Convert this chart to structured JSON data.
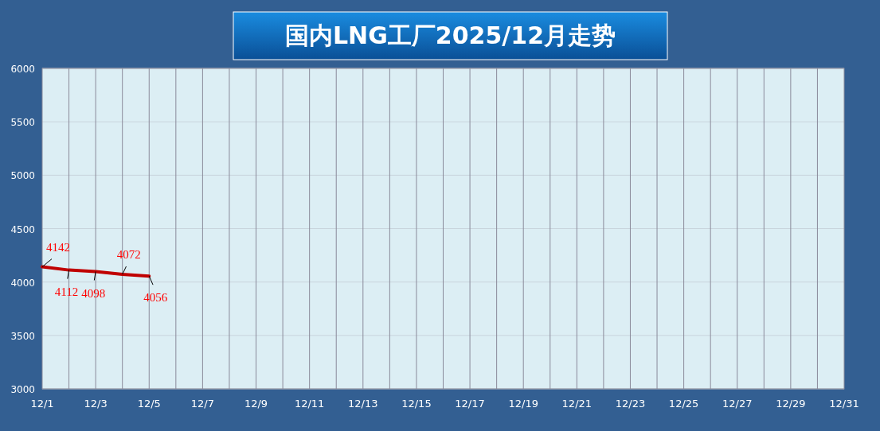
{
  "chart_data": {
    "type": "line",
    "title": "国内LNG工厂2025/12月走势",
    "categories": [
      "12/1",
      null,
      "12/3",
      null,
      "12/5",
      null,
      "12/7",
      null,
      "12/9",
      null,
      "12/11",
      null,
      "12/13",
      null,
      "12/15",
      null,
      "12/17",
      null,
      "12/19",
      null,
      "12/21",
      null,
      "12/23",
      null,
      "12/25",
      null,
      "12/27",
      null,
      "12/29",
      null,
      "12/31"
    ],
    "series": [
      {
        "color": "#c00000",
        "values": [
          4142,
          4112,
          4098,
          4072,
          4056,
          null,
          null,
          null,
          null,
          null,
          null,
          null,
          null,
          null,
          null,
          null,
          null,
          null,
          null,
          null,
          null,
          null,
          null,
          null,
          null,
          null,
          null,
          null,
          null,
          null,
          null
        ]
      }
    ],
    "ylim": [
      3000,
      6000
    ],
    "yticks": [
      3000,
      3500,
      4000,
      4500,
      5000,
      5500,
      6000
    ],
    "grid": true,
    "data_labels": true
  }
}
